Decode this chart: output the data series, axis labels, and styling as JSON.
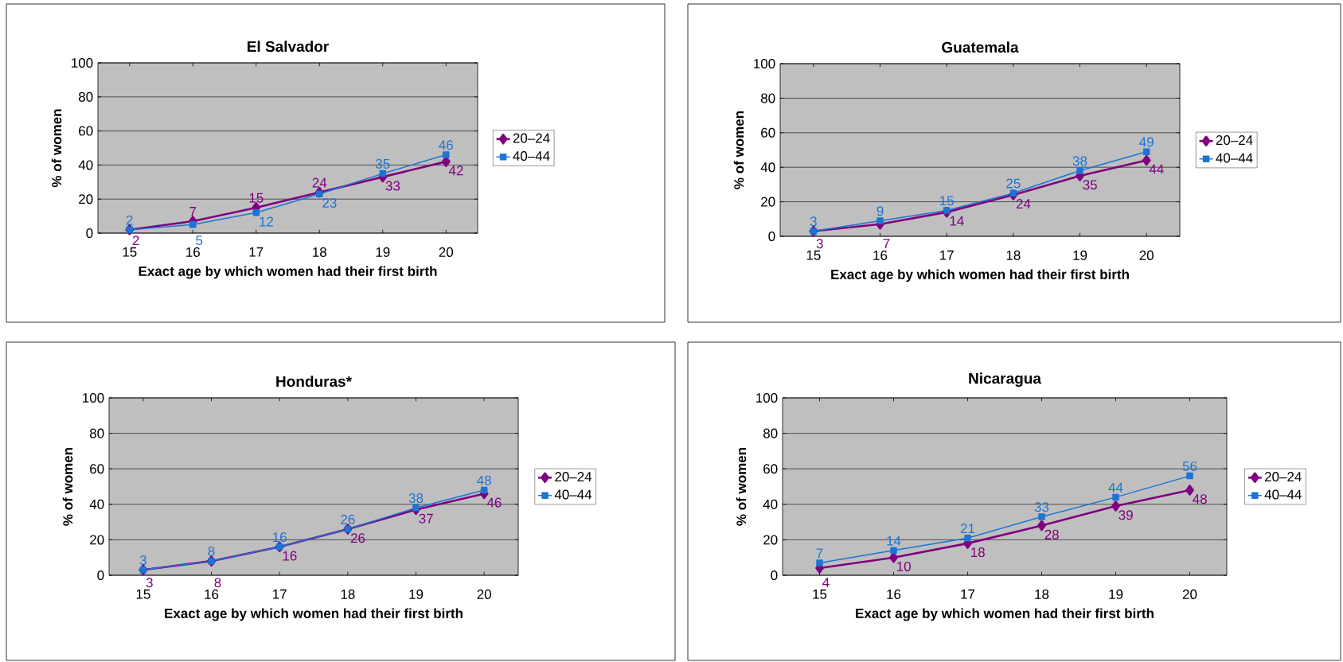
{
  "chart_data": [
    {
      "type": "line",
      "title": "El Salvador",
      "xlabel": "Exact age by which women had their first birth",
      "ylabel": "% of women",
      "categories": [
        "15",
        "16",
        "17",
        "18",
        "19",
        "20"
      ],
      "ylim": [
        0,
        100
      ],
      "yticks": [
        0,
        20,
        40,
        60,
        80,
        100
      ],
      "grid": "y",
      "legend": "right",
      "data_labels": true,
      "series": [
        {
          "name": "20–24",
          "color": "#800080",
          "marker": "diamond",
          "values": [
            2,
            7,
            15,
            24,
            33,
            42
          ]
        },
        {
          "name": "40–44",
          "color": "#1c74d4",
          "marker": "square",
          "values": [
            2,
            5,
            12,
            23,
            35,
            46
          ]
        }
      ]
    },
    {
      "type": "line",
      "title": "Guatemala",
      "xlabel": "Exact age by which women had their first birth",
      "ylabel": "% of women",
      "categories": [
        "15",
        "16",
        "17",
        "18",
        "19",
        "20"
      ],
      "ylim": [
        0,
        100
      ],
      "yticks": [
        0,
        20,
        40,
        60,
        80,
        100
      ],
      "grid": "y",
      "legend": "right",
      "data_labels": true,
      "series": [
        {
          "name": "20–24",
          "color": "#800080",
          "marker": "diamond",
          "values": [
            3,
            7,
            14,
            24,
            35,
            44
          ]
        },
        {
          "name": "40–44",
          "color": "#1c74d4",
          "marker": "square",
          "values": [
            3,
            9,
            15,
            25,
            38,
            49
          ]
        }
      ]
    },
    {
      "type": "line",
      "title": "Honduras*",
      "xlabel": "Exact age by which women had their first birth",
      "ylabel": "% of women",
      "categories": [
        "15",
        "16",
        "17",
        "18",
        "19",
        "20"
      ],
      "ylim": [
        0,
        100
      ],
      "yticks": [
        0,
        20,
        40,
        60,
        80,
        100
      ],
      "grid": "y",
      "legend": "right",
      "data_labels": true,
      "series": [
        {
          "name": "20–24",
          "color": "#800080",
          "marker": "diamond",
          "values": [
            3,
            8,
            16,
            26,
            37,
            46
          ]
        },
        {
          "name": "40–44",
          "color": "#1c74d4",
          "marker": "square",
          "values": [
            3,
            8,
            16,
            26,
            38,
            48
          ]
        }
      ]
    },
    {
      "type": "line",
      "title": "Nicaragua",
      "xlabel": "Exact age by which women had their first birth",
      "ylabel": "% of women",
      "categories": [
        "15",
        "16",
        "17",
        "18",
        "19",
        "20"
      ],
      "ylim": [
        0,
        100
      ],
      "yticks": [
        0,
        20,
        40,
        60,
        80,
        100
      ],
      "grid": "y",
      "legend": "right",
      "data_labels": true,
      "series": [
        {
          "name": "20–24",
          "color": "#800080",
          "marker": "diamond",
          "values": [
            4,
            10,
            18,
            28,
            39,
            48
          ]
        },
        {
          "name": "40–44",
          "color": "#1c74d4",
          "marker": "square",
          "values": [
            7,
            14,
            21,
            33,
            44,
            56
          ]
        }
      ]
    }
  ]
}
